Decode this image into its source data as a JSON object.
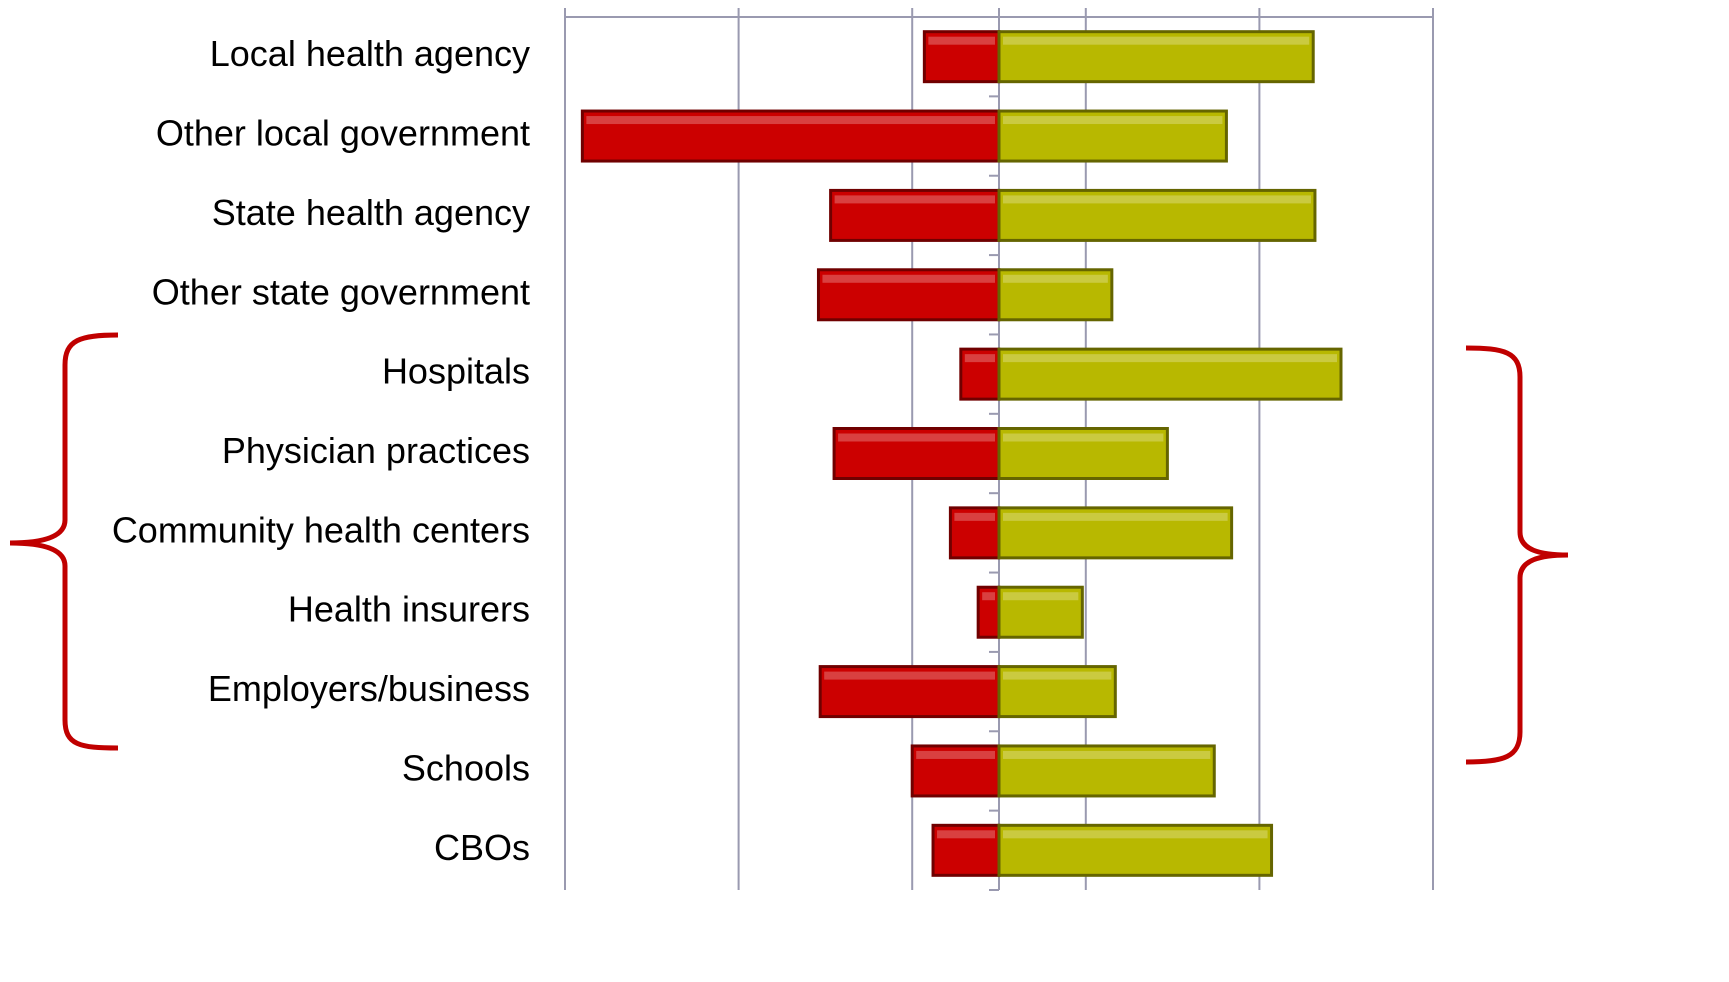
{
  "chart_data": {
    "type": "diverging-bar",
    "categories": [
      "Local health agency",
      "Other local government",
      "State health agency",
      "Other state government",
      "Hospitals",
      "Physician practices",
      "Community health centers",
      "Health insurers",
      "Employers/business",
      "Schools",
      "CBOs"
    ],
    "series": [
      {
        "color": "#cc0000",
        "values": [
          -4.3,
          -24.0,
          -9.7,
          -10.4,
          -2.2,
          -9.5,
          -2.8,
          -1.2,
          -10.3,
          -5.0,
          -3.8
        ]
      },
      {
        "color": "#b8b800",
        "values": [
          18.1,
          13.1,
          18.2,
          6.5,
          19.7,
          9.7,
          13.4,
          4.8,
          6.7,
          12.4,
          15.7
        ]
      }
    ],
    "xlim": [
      -25,
      25
    ],
    "xticks": [
      -25,
      -15,
      -5,
      5,
      15,
      25
    ],
    "grid": true
  }
}
